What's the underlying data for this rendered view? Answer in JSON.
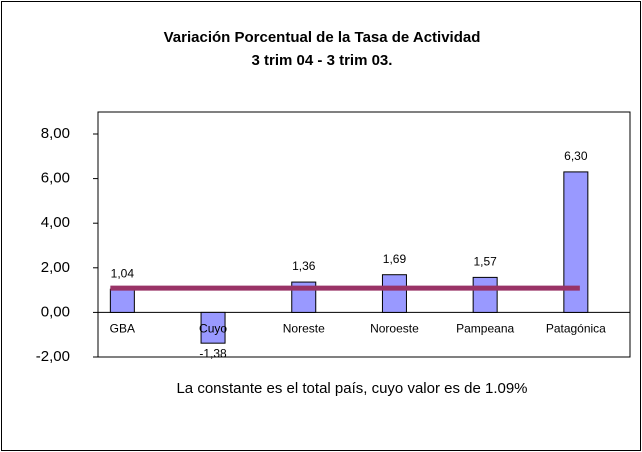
{
  "chart_data": {
    "type": "bar",
    "title": "Variación Porcentual de la Tasa de Actividad",
    "subtitle": "3 trim 04 - 3 trim 03.",
    "categories": [
      "GBA",
      "Cuyo",
      "Noreste",
      "Noroeste",
      "Pampeana",
      "Patagónica"
    ],
    "values": [
      1.04,
      -1.38,
      1.36,
      1.69,
      1.57,
      6.3
    ],
    "value_labels": [
      "1,04",
      "-1,38",
      "1,36",
      "1,69",
      "1,57",
      "6,30"
    ],
    "color": "#9999ff",
    "constant": 1.09,
    "constant_color": "#993366",
    "annotation": "La constante es el total país, cuyo valor es de 1.09%",
    "ylim": [
      -2,
      8
    ],
    "yticks": [
      {
        "value": -2,
        "label": "-2,00"
      },
      {
        "value": 0,
        "label": "0,00"
      },
      {
        "value": 2,
        "label": "2,00"
      },
      {
        "value": 4,
        "label": "4,00"
      },
      {
        "value": 6,
        "label": "6,00"
      },
      {
        "value": 8,
        "label": "8,00"
      }
    ]
  }
}
